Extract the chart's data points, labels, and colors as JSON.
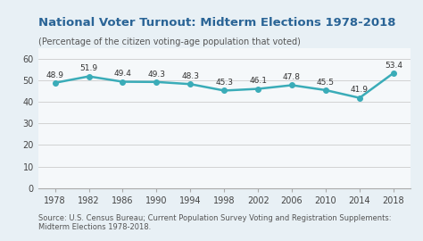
{
  "title": "National Voter Turnout: Midterm Elections 1978-2018",
  "subtitle": "(Percentage of the citizen voting-age population that voted)",
  "source": "Source: U.S. Census Bureau; Current Population Survey Voting and Registration Supplements:\nMidterm Elections 1978-2018.",
  "years": [
    1978,
    1982,
    1986,
    1990,
    1994,
    1998,
    2002,
    2006,
    2010,
    2014,
    2018
  ],
  "values": [
    48.9,
    51.9,
    49.4,
    49.3,
    48.3,
    45.3,
    46.1,
    47.8,
    45.5,
    41.9,
    53.4
  ],
  "line_color": "#3aacb8",
  "marker_color": "#3aacb8",
  "background_color": "#e8f0f5",
  "plot_bg_color": "#f5f8fa",
  "title_color": "#2a6496",
  "subtitle_color": "#555555",
  "grid_color": "#cccccc",
  "ylim": [
    0,
    65
  ],
  "yticks": [
    0,
    10,
    20,
    30,
    40,
    50,
    60
  ],
  "label_fontsize": 6.5,
  "title_fontsize": 9.5,
  "subtitle_fontsize": 7,
  "source_fontsize": 6,
  "tick_fontsize": 7
}
